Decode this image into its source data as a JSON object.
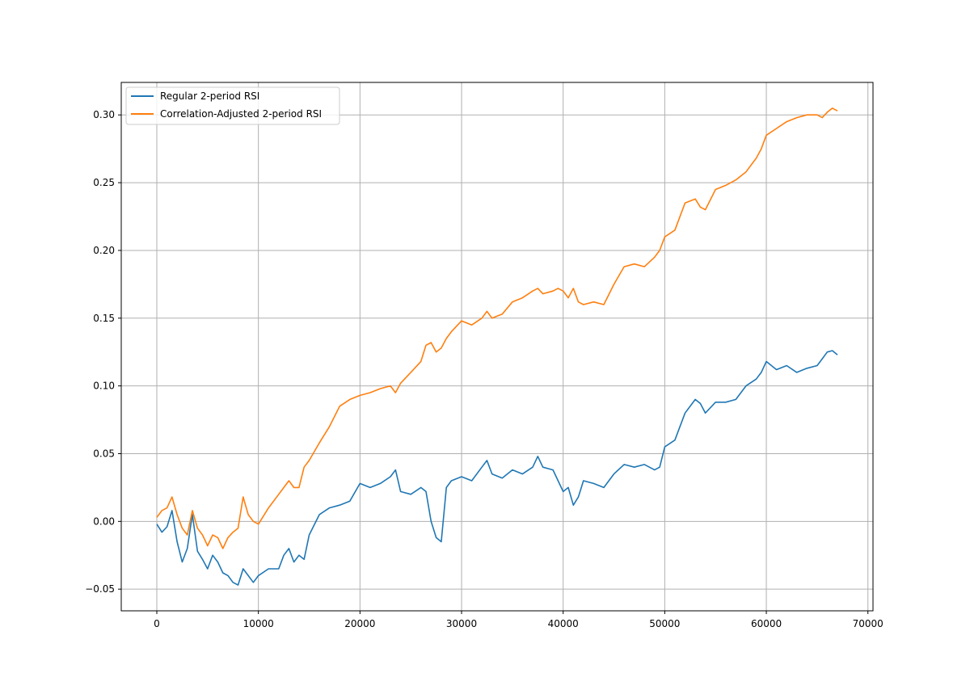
{
  "chart_data": {
    "type": "line",
    "title": "",
    "xlabel": "",
    "ylabel": "",
    "xlim": [
      -3500,
      70500
    ],
    "ylim": [
      -0.066,
      0.324
    ],
    "x_ticks": [
      0,
      10000,
      20000,
      30000,
      40000,
      50000,
      60000,
      70000
    ],
    "x_tick_labels": [
      "0",
      "10000",
      "20000",
      "30000",
      "40000",
      "50000",
      "60000",
      "70000"
    ],
    "y_ticks": [
      -0.05,
      0.0,
      0.05,
      0.1,
      0.15,
      0.2,
      0.25,
      0.3
    ],
    "y_tick_labels": [
      "−0.05",
      "0.00",
      "0.05",
      "0.10",
      "0.15",
      "0.20",
      "0.25",
      "0.30"
    ],
    "grid": true,
    "legend_position": "top-left",
    "series": [
      {
        "name": "Regular 2-period RSI",
        "color": "#1f77b4",
        "x": [
          0,
          500,
          1000,
          1500,
          2000,
          2500,
          3000,
          3500,
          4000,
          4500,
          5000,
          5500,
          6000,
          6500,
          7000,
          7500,
          8000,
          8500,
          9000,
          9500,
          10000,
          11000,
          12000,
          12500,
          13000,
          13500,
          14000,
          14500,
          15000,
          16000,
          17000,
          18000,
          19000,
          20000,
          21000,
          22000,
          23000,
          23500,
          24000,
          25000,
          26000,
          26500,
          27000,
          27500,
          28000,
          28500,
          29000,
          30000,
          31000,
          32000,
          32500,
          33000,
          34000,
          35000,
          36000,
          37000,
          37500,
          38000,
          39000,
          39500,
          40000,
          40500,
          41000,
          41500,
          42000,
          43000,
          44000,
          45000,
          46000,
          47000,
          48000,
          49000,
          49500,
          50000,
          51000,
          52000,
          53000,
          53500,
          54000,
          55000,
          56000,
          57000,
          58000,
          59000,
          59500,
          60000,
          61000,
          62000,
          63000,
          64000,
          65000,
          65500,
          66000,
          66500,
          67000
        ],
        "y": [
          -0.002,
          -0.008,
          -0.004,
          0.008,
          -0.015,
          -0.03,
          -0.02,
          0.005,
          -0.022,
          -0.028,
          -0.035,
          -0.025,
          -0.03,
          -0.038,
          -0.04,
          -0.045,
          -0.047,
          -0.035,
          -0.04,
          -0.045,
          -0.04,
          -0.035,
          -0.035,
          -0.025,
          -0.02,
          -0.03,
          -0.025,
          -0.028,
          -0.01,
          0.005,
          0.01,
          0.012,
          0.015,
          0.028,
          0.025,
          0.028,
          0.033,
          0.038,
          0.022,
          0.02,
          0.025,
          0.022,
          0.0,
          -0.012,
          -0.015,
          0.025,
          0.03,
          0.033,
          0.03,
          0.04,
          0.045,
          0.035,
          0.032,
          0.038,
          0.035,
          0.04,
          0.048,
          0.04,
          0.038,
          0.03,
          0.022,
          0.025,
          0.012,
          0.018,
          0.03,
          0.028,
          0.025,
          0.035,
          0.042,
          0.04,
          0.042,
          0.038,
          0.04,
          0.055,
          0.06,
          0.08,
          0.09,
          0.087,
          0.08,
          0.088,
          0.088,
          0.09,
          0.1,
          0.105,
          0.11,
          0.118,
          0.112,
          0.115,
          0.11,
          0.113,
          0.115,
          0.12,
          0.125,
          0.126,
          0.123
        ]
      },
      {
        "name": "Correlation-Adjusted 2-period RSI",
        "color": "#ff7f0e",
        "x": [
          0,
          500,
          1000,
          1500,
          2000,
          2500,
          3000,
          3500,
          4000,
          4500,
          5000,
          5500,
          6000,
          6500,
          7000,
          7500,
          8000,
          8500,
          9000,
          9500,
          10000,
          11000,
          12000,
          12500,
          13000,
          13500,
          14000,
          14500,
          15000,
          16000,
          17000,
          18000,
          19000,
          20000,
          21000,
          22000,
          23000,
          23500,
          24000,
          25000,
          26000,
          26500,
          27000,
          27500,
          28000,
          28500,
          29000,
          30000,
          31000,
          32000,
          32500,
          33000,
          34000,
          35000,
          36000,
          37000,
          37500,
          38000,
          39000,
          39500,
          40000,
          40500,
          41000,
          41500,
          42000,
          43000,
          44000,
          45000,
          46000,
          47000,
          48000,
          49000,
          49500,
          50000,
          51000,
          52000,
          53000,
          53500,
          54000,
          55000,
          56000,
          57000,
          58000,
          59000,
          59500,
          60000,
          61000,
          62000,
          63000,
          64000,
          65000,
          65500,
          66000,
          66500,
          67000
        ],
        "y": [
          0.003,
          0.008,
          0.01,
          0.018,
          0.005,
          -0.005,
          -0.01,
          0.008,
          -0.005,
          -0.01,
          -0.018,
          -0.01,
          -0.012,
          -0.02,
          -0.012,
          -0.008,
          -0.005,
          0.018,
          0.005,
          0.0,
          -0.002,
          0.01,
          0.02,
          0.025,
          0.03,
          0.025,
          0.025,
          0.04,
          0.045,
          0.058,
          0.07,
          0.085,
          0.09,
          0.093,
          0.095,
          0.098,
          0.1,
          0.095,
          0.102,
          0.11,
          0.118,
          0.13,
          0.132,
          0.125,
          0.128,
          0.135,
          0.14,
          0.148,
          0.145,
          0.15,
          0.155,
          0.15,
          0.153,
          0.162,
          0.165,
          0.17,
          0.172,
          0.168,
          0.17,
          0.172,
          0.17,
          0.165,
          0.172,
          0.162,
          0.16,
          0.162,
          0.16,
          0.175,
          0.188,
          0.19,
          0.188,
          0.195,
          0.2,
          0.21,
          0.215,
          0.235,
          0.238,
          0.232,
          0.23,
          0.245,
          0.248,
          0.252,
          0.258,
          0.268,
          0.275,
          0.285,
          0.29,
          0.295,
          0.298,
          0.3,
          0.3,
          0.298,
          0.302,
          0.305,
          0.303
        ]
      }
    ]
  }
}
